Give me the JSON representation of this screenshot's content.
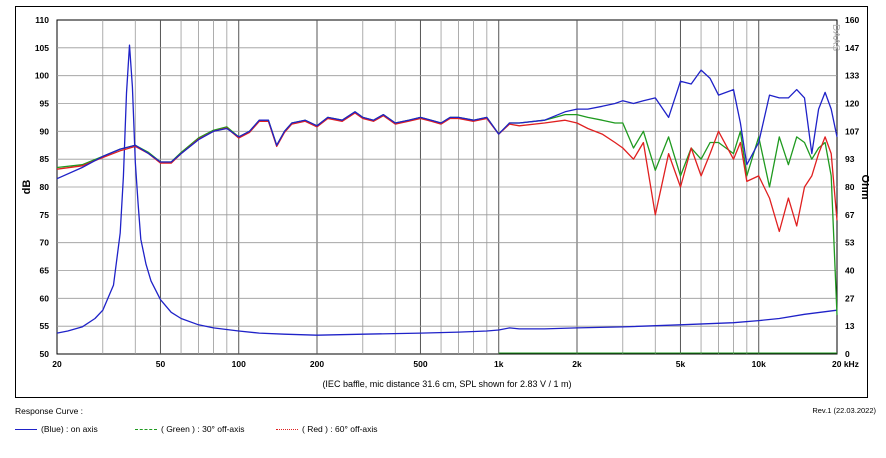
{
  "chart_data": {
    "type": "line",
    "x_scale": "log",
    "xlim": [
      20,
      20000
    ],
    "ylim": [
      50,
      110
    ],
    "y2lim": [
      0,
      160
    ],
    "ylabel": "dB",
    "y2label": "Ohm",
    "x_ticks": [
      {
        "v": 20,
        "t": "20"
      },
      {
        "v": 50,
        "t": "50"
      },
      {
        "v": 100,
        "t": "100"
      },
      {
        "v": 200,
        "t": "200"
      },
      {
        "v": 500,
        "t": "500"
      },
      {
        "v": 1000,
        "t": "1k"
      },
      {
        "v": 2000,
        "t": "2k"
      },
      {
        "v": 5000,
        "t": "5k"
      },
      {
        "v": 10000,
        "t": "10k"
      },
      {
        "v": 20000,
        "t": "20 kHz"
      }
    ],
    "y_ticks": [
      110,
      105,
      100,
      95,
      90,
      85,
      80,
      75,
      70,
      65,
      60,
      55,
      50
    ],
    "y2_ticks": [
      "160",
      "147",
      "133",
      "120",
      "107",
      "93",
      "80",
      "67",
      "53",
      "40",
      "27",
      "13",
      "0"
    ],
    "grid": true,
    "caption": "(IEC baffle, mic distance 31.6 cm, SPL shown for 2.83 V / 1 m)",
    "watermark": "DAAS",
    "series": [
      {
        "name": "(Blue) : on axis",
        "color": "#1f22c8",
        "axis": "left",
        "x": [
          20,
          25,
          30,
          35,
          40,
          45,
          50,
          55,
          60,
          70,
          80,
          90,
          100,
          110,
          120,
          130,
          140,
          150,
          160,
          180,
          200,
          220,
          250,
          280,
          300,
          330,
          360,
          400,
          450,
          500,
          550,
          600,
          650,
          700,
          800,
          900,
          1000,
          1100,
          1200,
          1500,
          1800,
          2000,
          2200,
          2500,
          2800,
          3000,
          3300,
          3600,
          4000,
          4500,
          5000,
          5500,
          6000,
          6500,
          7000,
          8000,
          8500,
          9000,
          10000,
          11000,
          12000,
          13000,
          14000,
          15000,
          16000,
          17000,
          18000,
          19000,
          20000
        ],
        "y": [
          81.5,
          83.5,
          85.5,
          86.8,
          87.5,
          86,
          84.5,
          84.5,
          86,
          88.5,
          90,
          90.5,
          89,
          90,
          92,
          92,
          87.5,
          90,
          91.5,
          92,
          91,
          92.5,
          92,
          93.5,
          92.5,
          92,
          93,
          91.5,
          92,
          92.5,
          92,
          91.5,
          92.5,
          92.5,
          92,
          92.5,
          89.5,
          91.5,
          91.5,
          92,
          93.5,
          94,
          94,
          94.5,
          95,
          95.5,
          95,
          95.5,
          96,
          92.5,
          99,
          98.5,
          101,
          99.5,
          96.5,
          97.5,
          91.5,
          84,
          88,
          96.5,
          96,
          96,
          97.5,
          96,
          86,
          94,
          97,
          94,
          89
        ]
      },
      {
        "name": "( Green ) : 30° off-axis",
        "color": "#1f9a1f",
        "axis": "left",
        "x": [
          20,
          25,
          30,
          35,
          40,
          45,
          50,
          55,
          60,
          70,
          80,
          90,
          100,
          110,
          120,
          130,
          140,
          150,
          160,
          180,
          200,
          220,
          250,
          280,
          300,
          330,
          360,
          400,
          450,
          500,
          550,
          600,
          650,
          700,
          800,
          900,
          1000,
          1100,
          1200,
          1500,
          1800,
          2000,
          2200,
          2500,
          2800,
          3000,
          3300,
          3600,
          4000,
          4500,
          5000,
          5500,
          6000,
          6500,
          7000,
          8000,
          8500,
          9000,
          10000,
          11000,
          12000,
          13000,
          14000,
          15000,
          16000,
          17000,
          18000,
          19000,
          20000
        ],
        "y": [
          83.5,
          84,
          85.5,
          86.8,
          87.5,
          86.2,
          84.5,
          84.5,
          86.2,
          88.8,
          90.2,
          90.8,
          89,
          90,
          92,
          92,
          87.5,
          90,
          91.5,
          92,
          91,
          92.5,
          92,
          93.5,
          92.5,
          92,
          93,
          91.5,
          92,
          92.5,
          92,
          91.5,
          92.5,
          92.5,
          92,
          92.5,
          89.5,
          91.5,
          91.5,
          92,
          93,
          93,
          92.5,
          92,
          91.5,
          91.5,
          87,
          90,
          83,
          89,
          82,
          87,
          85,
          88,
          88,
          86,
          90,
          82,
          89,
          80,
          89,
          84,
          89,
          88,
          85,
          87,
          88,
          82,
          57
        ]
      },
      {
        "name": "( Red ) : 60° off-axis",
        "color": "#e02020",
        "axis": "left",
        "x": [
          20,
          25,
          30,
          35,
          40,
          45,
          50,
          55,
          60,
          70,
          80,
          90,
          100,
          110,
          120,
          130,
          140,
          150,
          160,
          180,
          200,
          220,
          250,
          280,
          300,
          330,
          360,
          400,
          450,
          500,
          550,
          600,
          650,
          700,
          800,
          900,
          1000,
          1100,
          1200,
          1500,
          1800,
          2000,
          2200,
          2500,
          2800,
          3000,
          3300,
          3600,
          4000,
          4500,
          5000,
          5500,
          6000,
          6500,
          7000,
          8000,
          8500,
          9000,
          10000,
          11000,
          12000,
          13000,
          14000,
          15000,
          16000,
          17000,
          18000,
          19000,
          20000
        ],
        "y": [
          83.2,
          83.8,
          85.3,
          86.5,
          87.3,
          86,
          84.3,
          84.3,
          86,
          88.6,
          90,
          90.6,
          88.8,
          89.8,
          91.8,
          91.8,
          87.3,
          89.8,
          91.3,
          91.8,
          90.8,
          92.3,
          91.8,
          93.3,
          92.3,
          91.8,
          92.8,
          91.3,
          91.8,
          92.3,
          91.8,
          91.3,
          92.3,
          92.3,
          91.8,
          92.3,
          89.5,
          91.3,
          91,
          91.5,
          92,
          91.5,
          90.5,
          89.5,
          88,
          87,
          85,
          88,
          75,
          86,
          80,
          87,
          82,
          86,
          90,
          85,
          88,
          81,
          82,
          78,
          72,
          78,
          73,
          80,
          82,
          86,
          89,
          86,
          74
        ]
      },
      {
        "name": "Impedance",
        "color": "#1f22c8",
        "axis": "right",
        "x": [
          20,
          22,
          25,
          28,
          30,
          33,
          35,
          36,
          37,
          38,
          39,
          40,
          41,
          42,
          44,
          46,
          50,
          55,
          60,
          70,
          80,
          100,
          120,
          150,
          200,
          300,
          500,
          700,
          900,
          1000,
          1100,
          1200,
          1500,
          2000,
          3000,
          5000,
          8000,
          10000,
          12000,
          15000,
          20000
        ],
        "y": [
          10,
          11,
          13,
          17,
          21,
          33,
          58,
          85,
          125,
          148,
          128,
          92,
          72,
          55,
          43,
          35,
          26,
          20,
          17,
          14,
          12.5,
          11,
          10,
          9.5,
          9,
          9.5,
          10,
          10.5,
          11,
          11.5,
          12.5,
          12,
          12,
          12.5,
          13,
          14,
          15,
          16,
          17,
          19,
          21
        ]
      }
    ]
  },
  "legend": {
    "title": "Response Curve :",
    "entries": [
      {
        "label": "(Blue)  : on axis",
        "color": "#1f22c8",
        "style": "solid"
      },
      {
        "label": "( Green ) : 30° off-axis",
        "color": "#1f9a1f",
        "style": "dashed"
      },
      {
        "label": "( Red ) : 60° off-axis",
        "color": "#e02020",
        "style": "dotted"
      }
    ]
  },
  "revision": "Rev.1 (22.03.2022)"
}
